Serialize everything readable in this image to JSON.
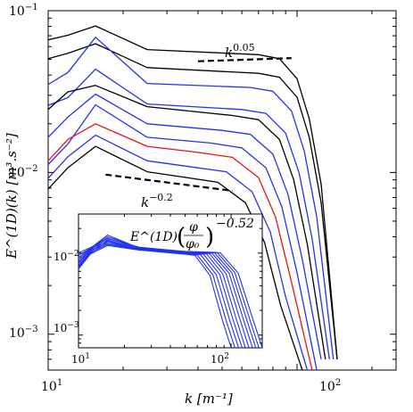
{
  "chart_data": [
    {
      "type": "line",
      "xscale": "log",
      "yscale": "log",
      "xlim": [
        10,
        250
      ],
      "ylim": [
        0.0006,
        0.1
      ],
      "xlabel": "k [m⁻¹]",
      "ylabel": "E^(1D)(k) [m³.s⁻²]",
      "xticks": [
        {
          "value": 10,
          "base": "10",
          "exp": "1"
        },
        {
          "value": 100,
          "base": "10",
          "exp": "2"
        }
      ],
      "yticks": [
        {
          "value": 0.1,
          "base": "10",
          "exp": "−1"
        },
        {
          "value": 0.01,
          "base": "10",
          "exp": "−2"
        },
        {
          "value": 0.001,
          "base": "10",
          "exp": "−3"
        }
      ],
      "grid": false,
      "series": [
        {
          "color": "#000000",
          "x": [
            10,
            12,
            15.5,
            25,
            70,
            85,
            100,
            112,
            125,
            145
          ],
          "y": [
            0.066,
            0.0705,
            0.0805,
            0.0575,
            0.0535,
            0.0505,
            0.038,
            0.0215,
            0.0085,
            0.0007
          ]
        },
        {
          "color": "#000000",
          "x": [
            10,
            12,
            15.5,
            25,
            70,
            85,
            100,
            112,
            125,
            145
          ],
          "y": [
            0.0505,
            0.0545,
            0.0625,
            0.0445,
            0.041,
            0.0388,
            0.0292,
            0.0165,
            0.0065,
            0.0007
          ]
        },
        {
          "color": "#2233ee",
          "x": [
            10,
            12,
            15.5,
            25,
            65,
            80,
            95,
            107,
            120,
            140
          ],
          "y": [
            0.035,
            0.0415,
            0.0685,
            0.0355,
            0.0335,
            0.0318,
            0.024,
            0.0135,
            0.0053,
            0.0007
          ]
        },
        {
          "color": "#2233ee",
          "x": [
            10,
            12,
            15.5,
            25,
            60,
            75,
            90,
            102,
            115,
            135
          ],
          "y": [
            0.026,
            0.029,
            0.0435,
            0.0265,
            0.0245,
            0.0232,
            0.0175,
            0.0099,
            0.0039,
            0.0007
          ]
        },
        {
          "color": "#000000",
          "x": [
            10,
            12,
            15.5,
            25,
            55,
            70,
            85,
            97,
            110,
            130
          ],
          "y": [
            0.0245,
            0.0315,
            0.0345,
            0.0255,
            0.0225,
            0.0212,
            0.016,
            0.009,
            0.0036,
            0.0007
          ]
        },
        {
          "color": "#2233ee",
          "x": [
            10,
            12,
            15.5,
            25,
            50,
            65,
            80,
            92,
            105,
            125
          ],
          "y": [
            0.0165,
            0.022,
            0.0305,
            0.02,
            0.0182,
            0.0172,
            0.013,
            0.0073,
            0.0029,
            0.0007
          ]
        },
        {
          "color": "#2233ee",
          "x": [
            10,
            12,
            15.5,
            25,
            45,
            60,
            75,
            87,
            100,
            120
          ],
          "y": [
            0.0112,
            0.015,
            0.0262,
            0.0165,
            0.0152,
            0.0142,
            0.0107,
            0.0061,
            0.0024,
            0.0006
          ]
        },
        {
          "color": "#ee1111",
          "x": [
            10,
            12,
            15.5,
            25,
            40,
            55,
            70,
            82,
            95,
            115
          ],
          "y": [
            0.0118,
            0.016,
            0.02,
            0.0145,
            0.0133,
            0.0124,
            0.0093,
            0.0053,
            0.0021,
            0.0006
          ]
        },
        {
          "color": "#2233ee",
          "x": [
            10,
            12,
            15.5,
            25,
            38,
            52,
            66,
            78,
            90,
            110
          ],
          "y": [
            0.0092,
            0.0125,
            0.017,
            0.0118,
            0.0108,
            0.0101,
            0.0076,
            0.0043,
            0.0017,
            0.0006
          ]
        },
        {
          "color": "#000000",
          "x": [
            10,
            12,
            15.5,
            25,
            36,
            48,
            62,
            74,
            86,
            105
          ],
          "y": [
            0.0079,
            0.0107,
            0.0145,
            0.0101,
            0.0093,
            0.0087,
            0.0065,
            0.0037,
            0.0015,
            0.0006
          ]
        }
      ],
      "annotations": [
        {
          "text_base": "k",
          "text_exp": "0.05",
          "line": {
            "x": [
              40,
              95
            ],
            "y": [
              0.0487,
              0.0509
            ]
          }
        },
        {
          "text_base": "k",
          "text_exp": "−0.2",
          "line": {
            "x": [
              17,
              55
            ],
            "y": [
              0.0097,
              0.0077
            ]
          }
        }
      ]
    },
    {
      "type": "line",
      "inset": true,
      "xscale": "log",
      "yscale": "log",
      "xlim": [
        10,
        160
      ],
      "ylim": [
        0.0007,
        0.03
      ],
      "xticks": [
        {
          "value": 10,
          "base": "10",
          "exp": "1"
        },
        {
          "value": 100,
          "base": "10",
          "exp": "2"
        }
      ],
      "yticks": [
        {
          "value": 0.01,
          "base": "10",
          "exp": "−2"
        },
        {
          "value": 0.001,
          "base": "10",
          "exp": "−3"
        }
      ],
      "annotation": {
        "base": "E^(1D)",
        "frac_num": "φ",
        "frac_den": "φ₀",
        "exp": "−0.52"
      },
      "series_color": "#2233ee",
      "series_x": [
        10,
        12,
        15.5,
        25,
        50
      ],
      "series_ys": [
        [
          0.0101,
          0.0117,
          0.015,
          0.0118,
          0.0104
        ],
        [
          0.0094,
          0.0114,
          0.0158,
          0.0117,
          0.0105
        ],
        [
          0.0088,
          0.0115,
          0.0166,
          0.0115,
          0.0104
        ],
        [
          0.0083,
          0.0112,
          0.014,
          0.0114,
          0.0103
        ],
        [
          0.0078,
          0.011,
          0.0152,
          0.0113,
          0.0102
        ],
        [
          0.0075,
          0.0108,
          0.0132,
          0.0112,
          0.0101
        ],
        [
          0.0071,
          0.0104,
          0.0145,
          0.0111,
          0.01
        ],
        [
          0.0068,
          0.0102,
          0.0128,
          0.011,
          0.0099
        ],
        [
          0.0066,
          0.01,
          0.0138,
          0.011,
          0.0098
        ],
        [
          0.0064,
          0.0098,
          0.0124,
          0.0109,
          0.0097
        ]
      ],
      "series_drop_start": [
        85,
        81,
        78,
        75,
        72,
        69,
        66,
        63,
        60,
        58
      ],
      "series_drop_end": [
        160,
        152,
        145,
        138,
        131,
        124,
        118,
        112,
        106,
        100
      ]
    }
  ]
}
